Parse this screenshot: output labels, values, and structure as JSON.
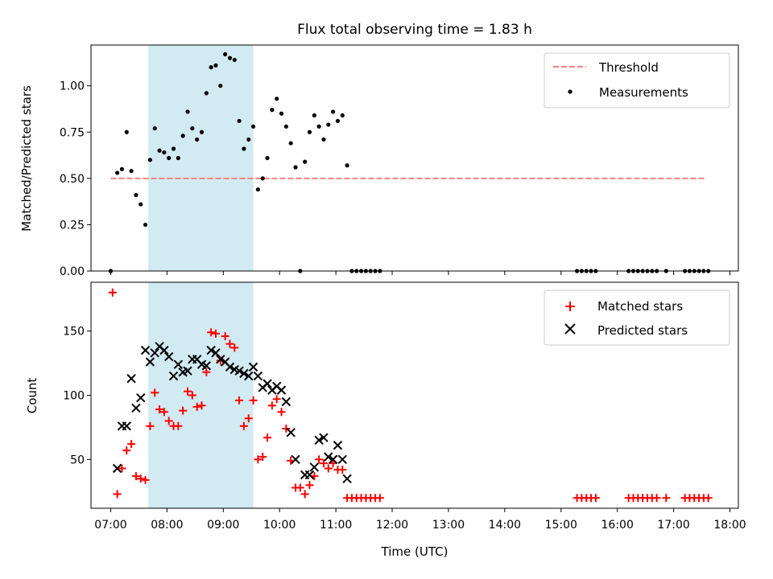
{
  "chart_data": [
    {
      "type": "scatter",
      "title": "Flux total observing time = 1.83 h",
      "xlabel": "",
      "ylabel": "Matched/Predicted stars",
      "ylim": [
        0,
        1.22
      ],
      "xlim_hours": [
        6.65,
        18.15
      ],
      "yticks": [
        0.0,
        0.25,
        0.5,
        0.75,
        1.0
      ],
      "ytick_labels": [
        "0.00",
        "0.25",
        "0.50",
        "0.75",
        "1.00"
      ],
      "highlight_span": [
        "07:40",
        "09:32"
      ],
      "legend": {
        "placement": "top-right",
        "entries": [
          "Threshold",
          "Measurements"
        ]
      },
      "threshold": {
        "name": "Threshold",
        "value": 0.5,
        "x": [
          "07:00",
          "17:35"
        ],
        "color": "#ff7f7f"
      },
      "series": [
        {
          "name": "Measurements",
          "color": "#000000",
          "points": [
            [
              "07:00",
              0.0
            ],
            [
              "07:07",
              0.53
            ],
            [
              "07:12",
              0.55
            ],
            [
              "07:17",
              0.75
            ],
            [
              "07:22",
              0.54
            ],
            [
              "07:27",
              0.41
            ],
            [
              "07:32",
              0.36
            ],
            [
              "07:37",
              0.25
            ],
            [
              "07:42",
              0.6
            ],
            [
              "07:47",
              0.77
            ],
            [
              "07:52",
              0.65
            ],
            [
              "07:57",
              0.64
            ],
            [
              "08:02",
              0.61
            ],
            [
              "08:07",
              0.66
            ],
            [
              "08:12",
              0.61
            ],
            [
              "08:17",
              0.73
            ],
            [
              "08:22",
              0.86
            ],
            [
              "08:27",
              0.77
            ],
            [
              "08:32",
              0.71
            ],
            [
              "08:37",
              0.75
            ],
            [
              "08:42",
              0.96
            ],
            [
              "08:47",
              1.1
            ],
            [
              "08:52",
              1.11
            ],
            [
              "08:57",
              1.0
            ],
            [
              "09:02",
              1.17
            ],
            [
              "09:07",
              1.15
            ],
            [
              "09:12",
              1.14
            ],
            [
              "09:17",
              0.81
            ],
            [
              "09:22",
              0.66
            ],
            [
              "09:27",
              0.71
            ],
            [
              "09:32",
              0.78
            ],
            [
              "09:37",
              0.44
            ],
            [
              "09:42",
              0.5
            ],
            [
              "09:47",
              0.61
            ],
            [
              "09:52",
              0.87
            ],
            [
              "09:57",
              0.93
            ],
            [
              "10:02",
              0.85
            ],
            [
              "10:07",
              0.78
            ],
            [
              "10:12",
              0.69
            ],
            [
              "10:17",
              0.56
            ],
            [
              "10:22",
              0.0
            ],
            [
              "10:27",
              0.59
            ],
            [
              "10:32",
              0.75
            ],
            [
              "10:37",
              0.84
            ],
            [
              "10:42",
              0.78
            ],
            [
              "10:47",
              0.71
            ],
            [
              "10:52",
              0.79
            ],
            [
              "10:57",
              0.86
            ],
            [
              "11:02",
              0.81
            ],
            [
              "11:07",
              0.84
            ],
            [
              "11:12",
              0.57
            ],
            [
              "11:17",
              0.0
            ],
            [
              "11:22",
              0.0
            ],
            [
              "11:27",
              0.0
            ],
            [
              "11:32",
              0.0
            ],
            [
              "11:37",
              0.0
            ],
            [
              "11:42",
              0.0
            ],
            [
              "11:47",
              0.0
            ],
            [
              "15:17",
              0.0
            ],
            [
              "15:22",
              0.0
            ],
            [
              "15:27",
              0.0
            ],
            [
              "15:32",
              0.0
            ],
            [
              "15:37",
              0.0
            ],
            [
              "16:12",
              0.0
            ],
            [
              "16:17",
              0.0
            ],
            [
              "16:22",
              0.0
            ],
            [
              "16:27",
              0.0
            ],
            [
              "16:32",
              0.0
            ],
            [
              "16:37",
              0.0
            ],
            [
              "16:42",
              0.0
            ],
            [
              "16:52",
              0.0
            ],
            [
              "17:12",
              0.0
            ],
            [
              "17:17",
              0.0
            ],
            [
              "17:22",
              0.0
            ],
            [
              "17:27",
              0.0
            ],
            [
              "17:32",
              0.0
            ],
            [
              "17:37",
              0.0
            ]
          ]
        }
      ]
    },
    {
      "type": "scatter",
      "title": "",
      "xlabel": "Time (UTC)",
      "ylabel": "Count",
      "ylim": [
        12,
        188
      ],
      "xlim_hours": [
        6.65,
        18.15
      ],
      "yticks": [
        50,
        100,
        150
      ],
      "ytick_labels": [
        "50",
        "100",
        "150"
      ],
      "xtick_labels": [
        "07:00",
        "08:00",
        "09:00",
        "10:00",
        "11:00",
        "12:00",
        "13:00",
        "14:00",
        "15:00",
        "16:00",
        "17:00",
        "18:00"
      ],
      "highlight_span": [
        "07:40",
        "09:32"
      ],
      "legend": {
        "placement": "top-right",
        "entries": [
          "Matched stars",
          "Predicted stars"
        ]
      },
      "series": [
        {
          "name": "Matched stars",
          "color": "#ff0000",
          "marker": "plus",
          "points": [
            [
              "07:02",
              180
            ],
            [
              "07:07",
              23
            ],
            [
              "07:12",
              43
            ],
            [
              "07:17",
              57
            ],
            [
              "07:22",
              62
            ],
            [
              "07:27",
              37
            ],
            [
              "07:32",
              35
            ],
            [
              "07:37",
              34
            ],
            [
              "07:42",
              76
            ],
            [
              "07:47",
              102
            ],
            [
              "07:52",
              89
            ],
            [
              "07:57",
              87
            ],
            [
              "08:02",
              80
            ],
            [
              "08:07",
              76
            ],
            [
              "08:12",
              76
            ],
            [
              "08:17",
              88
            ],
            [
              "08:22",
              103
            ],
            [
              "08:27",
              100
            ],
            [
              "08:32",
              91
            ],
            [
              "08:37",
              92
            ],
            [
              "08:42",
              118
            ],
            [
              "08:47",
              149
            ],
            [
              "08:52",
              148
            ],
            [
              "08:57",
              127
            ],
            [
              "09:02",
              146
            ],
            [
              "09:07",
              140
            ],
            [
              "09:12",
              137
            ],
            [
              "09:17",
              96
            ],
            [
              "09:22",
              76
            ],
            [
              "09:27",
              82
            ],
            [
              "09:32",
              96
            ],
            [
              "09:37",
              50
            ],
            [
              "09:42",
              52
            ],
            [
              "09:47",
              67
            ],
            [
              "09:52",
              92
            ],
            [
              "09:57",
              97
            ],
            [
              "10:02",
              87
            ],
            [
              "10:07",
              74
            ],
            [
              "10:12",
              49
            ],
            [
              "10:17",
              28
            ],
            [
              "10:22",
              28
            ],
            [
              "10:27",
              23
            ],
            [
              "10:32",
              30
            ],
            [
              "10:37",
              37
            ],
            [
              "10:42",
              50
            ],
            [
              "10:47",
              47
            ],
            [
              "10:52",
              43
            ],
            [
              "10:57",
              47
            ],
            [
              "11:02",
              42
            ],
            [
              "11:07",
              42
            ],
            [
              "11:12",
              20
            ],
            [
              "11:17",
              20
            ],
            [
              "11:22",
              20
            ],
            [
              "11:27",
              20
            ],
            [
              "11:32",
              20
            ],
            [
              "11:37",
              20
            ],
            [
              "11:42",
              20
            ],
            [
              "11:47",
              20
            ],
            [
              "15:17",
              20
            ],
            [
              "15:22",
              20
            ],
            [
              "15:27",
              20
            ],
            [
              "15:32",
              20
            ],
            [
              "15:37",
              20
            ],
            [
              "16:12",
              20
            ],
            [
              "16:17",
              20
            ],
            [
              "16:22",
              20
            ],
            [
              "16:27",
              20
            ],
            [
              "16:32",
              20
            ],
            [
              "16:37",
              20
            ],
            [
              "16:42",
              20
            ],
            [
              "16:52",
              20
            ],
            [
              "17:12",
              20
            ],
            [
              "17:17",
              20
            ],
            [
              "17:22",
              20
            ],
            [
              "17:27",
              20
            ],
            [
              "17:32",
              20
            ],
            [
              "17:37",
              20
            ]
          ]
        },
        {
          "name": "Predicted stars",
          "color": "#000000",
          "marker": "x",
          "points": [
            [
              "07:07",
              43
            ],
            [
              "07:12",
              76
            ],
            [
              "07:17",
              76
            ],
            [
              "07:22",
              113
            ],
            [
              "07:27",
              90
            ],
            [
              "07:32",
              98
            ],
            [
              "07:37",
              135
            ],
            [
              "07:42",
              126
            ],
            [
              "07:47",
              133
            ],
            [
              "07:52",
              138
            ],
            [
              "07:57",
              135
            ],
            [
              "08:02",
              130
            ],
            [
              "08:07",
              115
            ],
            [
              "08:12",
              124
            ],
            [
              "08:17",
              118
            ],
            [
              "08:22",
              119
            ],
            [
              "08:27",
              128
            ],
            [
              "08:32",
              128
            ],
            [
              "08:37",
              124
            ],
            [
              "08:42",
              123
            ],
            [
              "08:47",
              135
            ],
            [
              "08:52",
              133
            ],
            [
              "08:57",
              128
            ],
            [
              "09:02",
              126
            ],
            [
              "09:07",
              122
            ],
            [
              "09:12",
              120
            ],
            [
              "09:17",
              119
            ],
            [
              "09:22",
              117
            ],
            [
              "09:27",
              115
            ],
            [
              "09:32",
              122
            ],
            [
              "09:37",
              115
            ],
            [
              "09:42",
              106
            ],
            [
              "09:47",
              109
            ],
            [
              "09:52",
              104
            ],
            [
              "09:57",
              107
            ],
            [
              "10:02",
              104
            ],
            [
              "10:07",
              95
            ],
            [
              "10:12",
              71
            ],
            [
              "10:17",
              50
            ],
            [
              "10:27",
              38
            ],
            [
              "10:32",
              38
            ],
            [
              "10:37",
              44
            ],
            [
              "10:42",
              65
            ],
            [
              "10:47",
              67
            ],
            [
              "10:52",
              52
            ],
            [
              "10:57",
              50
            ],
            [
              "11:02",
              61
            ],
            [
              "11:07",
              50
            ],
            [
              "11:12",
              35
            ]
          ]
        }
      ]
    }
  ]
}
